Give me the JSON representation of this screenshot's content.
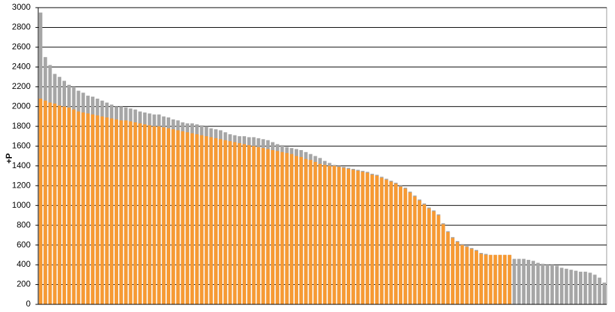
{
  "chart_data": {
    "type": "bar",
    "y_label": "+P",
    "ylim": [
      0,
      3000
    ],
    "yticks": [
      0,
      200,
      400,
      600,
      800,
      1000,
      1200,
      1400,
      1600,
      1800,
      2000,
      2200,
      2400,
      2600,
      2800,
      3000
    ],
    "grid": true,
    "series": [
      {
        "color": "#a6a6a6",
        "values": [
          2950,
          2500,
          2420,
          2330,
          2300,
          2260,
          2220,
          2200,
          2160,
          2140,
          2110,
          2100,
          2080,
          2060,
          2040,
          2020,
          2000,
          2000,
          1990,
          1980,
          1970,
          1950,
          1940,
          1930,
          1920,
          1920,
          1900,
          1890,
          1870,
          1860,
          1840,
          1830,
          1830,
          1820,
          1810,
          1800,
          1780,
          1770,
          1760,
          1740,
          1720,
          1710,
          1700,
          1700,
          1690,
          1690,
          1680,
          1670,
          1660,
          1640,
          1620,
          1610,
          1590,
          1580,
          1570,
          1560,
          1540,
          1520,
          1500,
          1480,
          1450,
          1430,
          1410,
          1400,
          1390,
          1380,
          1370,
          1360,
          1350,
          1340,
          1320,
          1310,
          1290,
          1270,
          1250,
          1230,
          1200,
          1180,
          1140,
          1100,
          1060,
          1020,
          980,
          950,
          910,
          820,
          740,
          680,
          640,
          610,
          590,
          570,
          550,
          520,
          510,
          500,
          500,
          500,
          500,
          500,
          460,
          460,
          460,
          450,
          440,
          420,
          410,
          400,
          400,
          390,
          370,
          360,
          350,
          340,
          330,
          330,
          320,
          300,
          270,
          220
        ]
      },
      {
        "color": "#f79a33",
        "values": [
          2080,
          2060,
          2040,
          2030,
          2010,
          2000,
          1990,
          1970,
          1950,
          1940,
          1930,
          1920,
          1910,
          1900,
          1890,
          1880,
          1870,
          1860,
          1860,
          1850,
          1840,
          1830,
          1820,
          1810,
          1800,
          1800,
          1790,
          1780,
          1770,
          1760,
          1750,
          1740,
          1730,
          1720,
          1710,
          1700,
          1690,
          1680,
          1670,
          1660,
          1650,
          1640,
          1630,
          1620,
          1610,
          1600,
          1590,
          1580,
          1570,
          1560,
          1550,
          1540,
          1530,
          1520,
          1500,
          1490,
          1470,
          1460,
          1440,
          1420,
          1410,
          1400,
          1400,
          1390,
          1380,
          1370,
          1360,
          1350,
          1340,
          1330,
          1310,
          1300,
          1280,
          1260,
          1240,
          1220,
          1190,
          1170,
          1130,
          1090,
          1050,
          1010,
          970,
          940,
          900,
          810,
          730,
          670,
          630,
          600,
          580,
          560,
          540,
          510,
          500,
          500,
          500,
          500,
          500,
          500,
          0,
          0,
          0,
          0,
          0,
          0,
          0,
          0,
          0,
          0,
          0,
          0,
          0,
          0,
          0,
          0,
          0,
          0,
          0,
          0
        ]
      }
    ]
  }
}
